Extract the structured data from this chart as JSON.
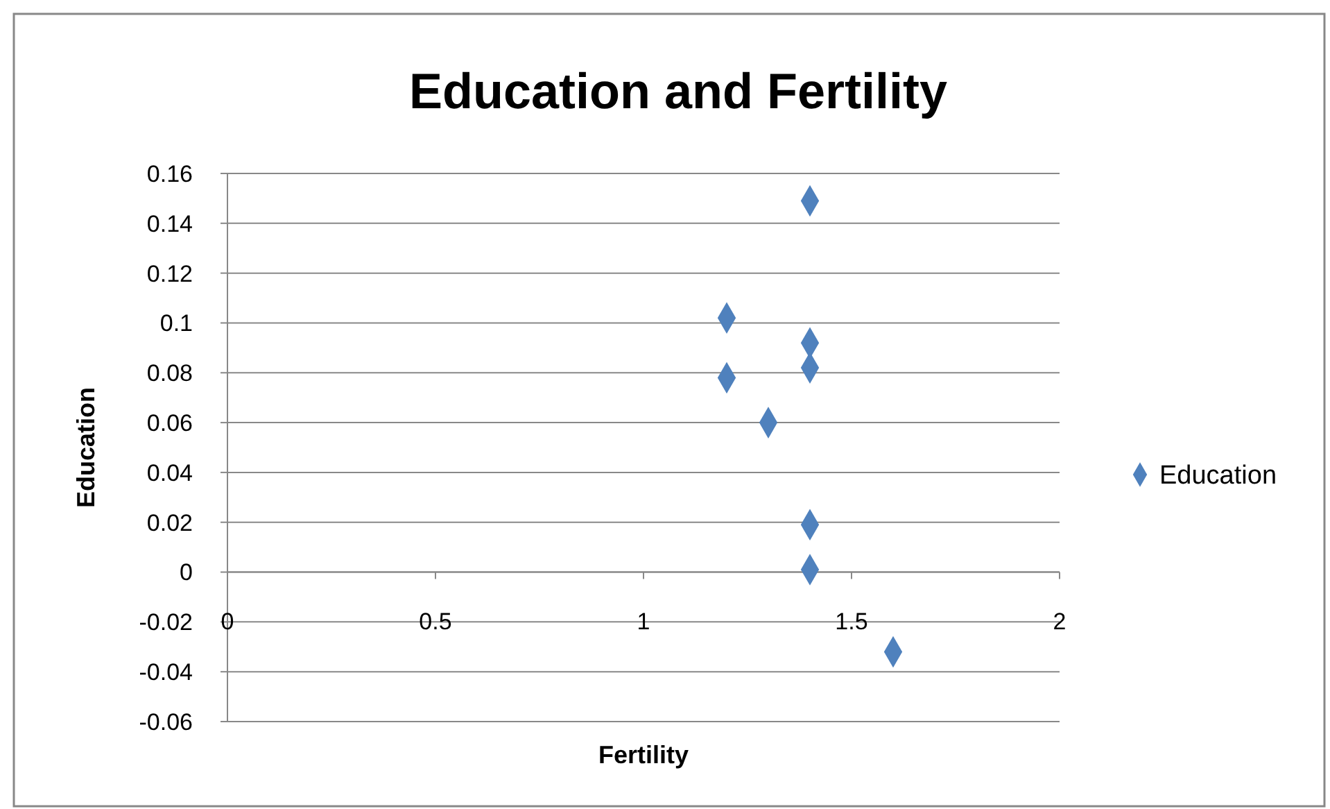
{
  "chart_data": {
    "type": "scatter",
    "title": "Education and Fertility",
    "xlabel": "Fertility",
    "ylabel": "Education",
    "series": [
      {
        "name": "Education",
        "color": "#4f81bd",
        "x": [
          1.4,
          1.2,
          1.4,
          1.4,
          1.2,
          1.3,
          1.4,
          1.4,
          1.6
        ],
        "values": [
          0.149,
          0.102,
          0.092,
          0.082,
          0.078,
          0.06,
          0.019,
          0.001,
          -0.032
        ]
      }
    ],
    "xlim": [
      0,
      2
    ],
    "xticks": [
      0,
      0.5,
      1,
      1.5,
      2
    ],
    "ylim": [
      -0.06,
      0.16
    ],
    "yticks": [
      -0.06,
      -0.04,
      -0.02,
      0,
      0.02,
      0.04,
      0.06,
      0.08,
      0.1,
      0.12,
      0.14,
      0.16
    ],
    "grid": "y",
    "legend": "right",
    "marker": "diamond"
  }
}
